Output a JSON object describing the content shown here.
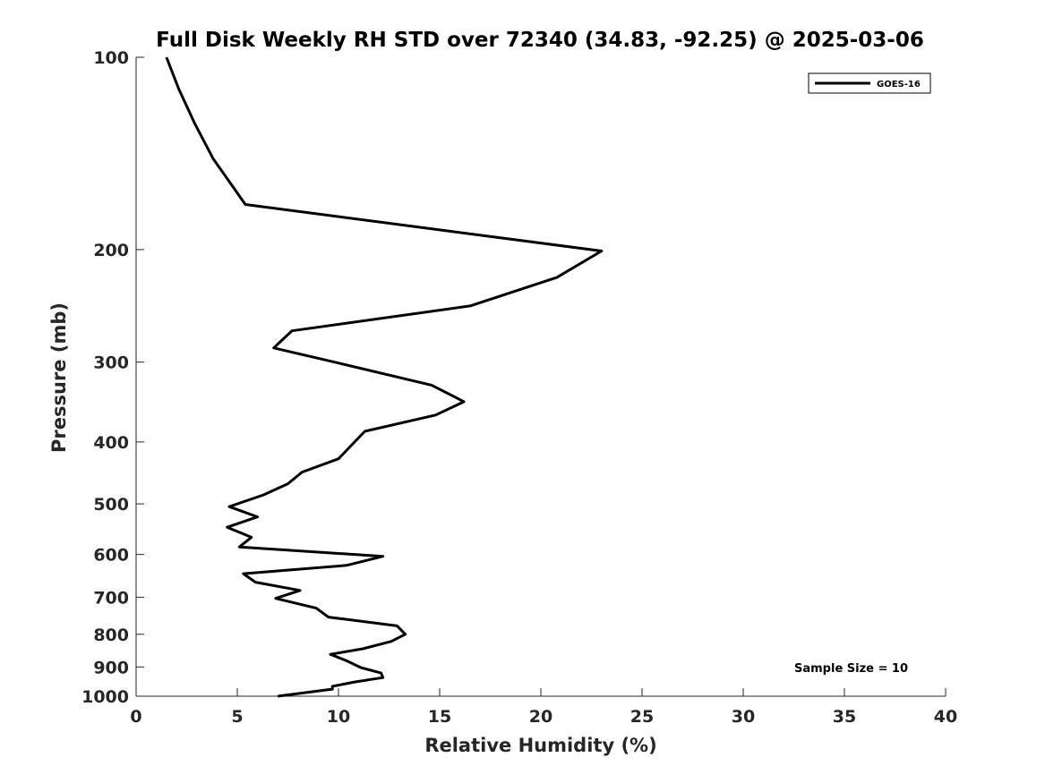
{
  "chart_data": {
    "type": "line",
    "title": "Full Disk Weekly RH STD over 72340 (34.83, -92.25) @ 2025-03-06",
    "xlabel": "Relative Humidity (%)",
    "ylabel": "Pressure (mb)",
    "xlim": [
      0,
      40
    ],
    "ylim": [
      100,
      1000
    ],
    "y_scale": "log",
    "y_inverted": true,
    "x_ticks": [
      0,
      5,
      10,
      15,
      20,
      25,
      30,
      35,
      40
    ],
    "y_ticks": [
      100,
      200,
      300,
      400,
      500,
      600,
      700,
      800,
      900,
      1000
    ],
    "grid": false,
    "legend": {
      "position": "top-right",
      "entries": [
        "GOES-16"
      ]
    },
    "annotation": "Sample Size = 10",
    "series": [
      {
        "name": "GOES-16",
        "color": "#000000",
        "x": [
          1.5,
          2.1,
          2.9,
          3.8,
          5.4,
          23.0,
          20.8,
          16.5,
          7.7,
          6.8,
          10.0,
          14.6,
          16.2,
          14.8,
          11.3,
          10.6,
          10.0,
          8.2,
          7.5,
          6.3,
          4.6,
          6.0,
          4.5,
          5.7,
          5.1,
          12.2,
          10.4,
          5.3,
          5.9,
          8.1,
          6.9,
          8.9,
          9.5,
          12.9,
          13.3,
          12.6,
          11.2,
          9.6,
          10.4,
          11.1,
          12.1,
          12.2,
          10.8,
          9.7,
          9.7,
          7.0
        ],
        "y": [
          100,
          112,
          127,
          144,
          170,
          201,
          221,
          245,
          268,
          285,
          301,
          326,
          346,
          363,
          385,
          406,
          425,
          446,
          465,
          484,
          505,
          524,
          544,
          564,
          584,
          604,
          624,
          643,
          663,
          683,
          703,
          728,
          752,
          776,
          800,
          821,
          843,
          860,
          880,
          902,
          920,
          935,
          950,
          965,
          975,
          1000
        ]
      }
    ]
  }
}
